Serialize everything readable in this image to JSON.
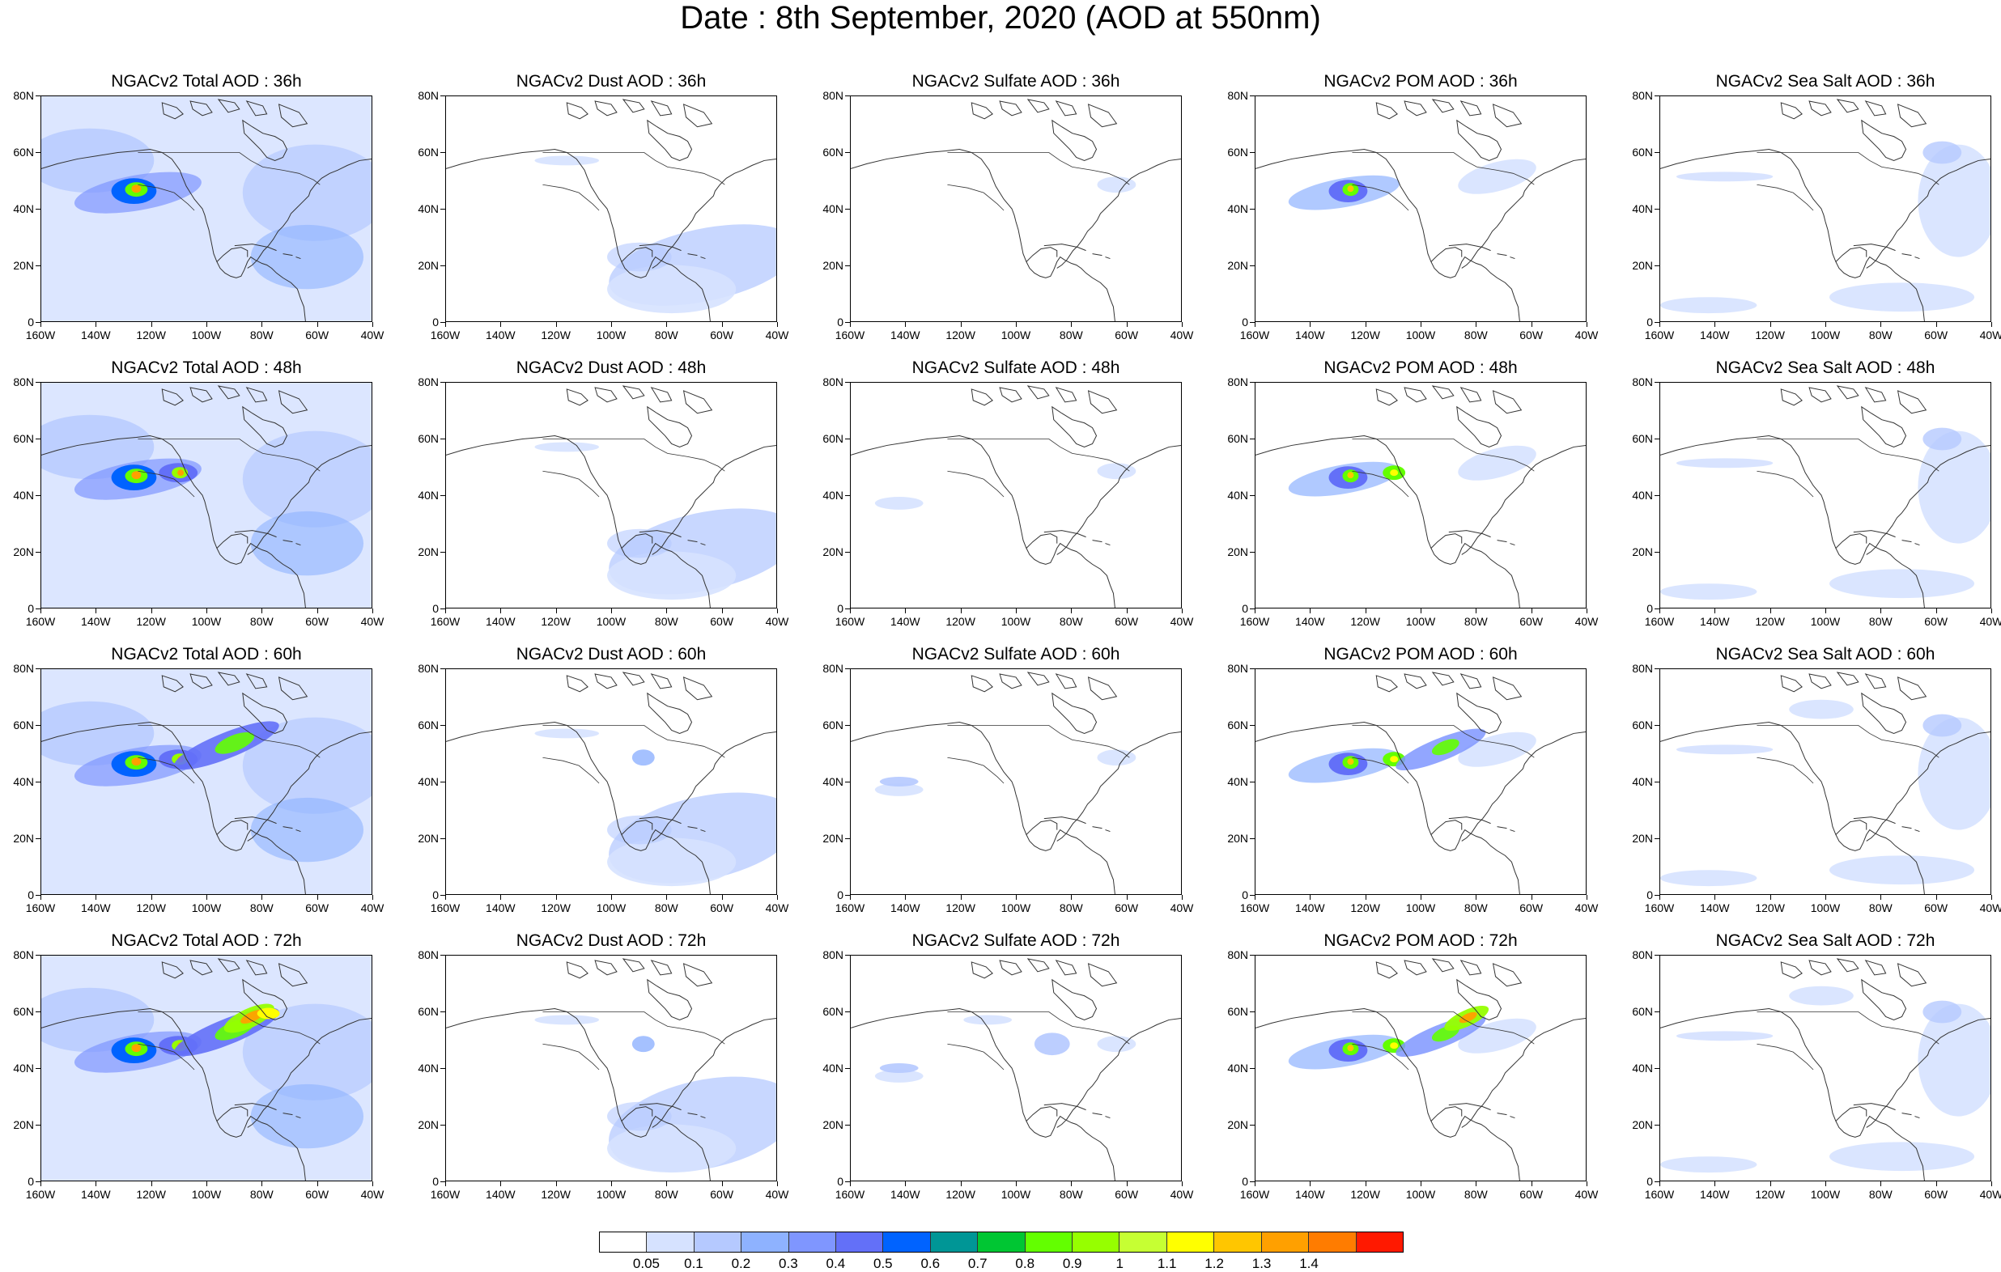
{
  "title": "Date : 8th September, 2020 (AOD at 550nm)",
  "xticks": [
    "160W",
    "140W",
    "120W",
    "100W",
    "80W",
    "60W",
    "40W"
  ],
  "yticks": [
    "80N",
    "60N",
    "40N",
    "20N",
    "0"
  ],
  "panels": [
    [
      {
        "title": "NGACv2 Total AOD : 36h",
        "species": "total",
        "hour": 36
      },
      {
        "title": "NGACv2 Dust AOD : 36h",
        "species": "dust",
        "hour": 36
      },
      {
        "title": "NGACv2 Sulfate AOD : 36h",
        "species": "sulfate",
        "hour": 36
      },
      {
        "title": "NGACv2 POM AOD : 36h",
        "species": "pom",
        "hour": 36
      },
      {
        "title": "NGACv2 Sea Salt AOD : 36h",
        "species": "seasalt",
        "hour": 36
      }
    ],
    [
      {
        "title": "NGACv2 Total AOD : 48h",
        "species": "total",
        "hour": 48
      },
      {
        "title": "NGACv2 Dust AOD : 48h",
        "species": "dust",
        "hour": 48
      },
      {
        "title": "NGACv2 Sulfate AOD : 48h",
        "species": "sulfate",
        "hour": 48
      },
      {
        "title": "NGACv2 POM AOD : 48h",
        "species": "pom",
        "hour": 48
      },
      {
        "title": "NGACv2 Sea Salt AOD : 48h",
        "species": "seasalt",
        "hour": 48
      }
    ],
    [
      {
        "title": "NGACv2 Total AOD : 60h",
        "species": "total",
        "hour": 60
      },
      {
        "title": "NGACv2 Dust AOD : 60h",
        "species": "dust",
        "hour": 60
      },
      {
        "title": "NGACv2 Sulfate AOD : 60h",
        "species": "sulfate",
        "hour": 60
      },
      {
        "title": "NGACv2 POM AOD : 60h",
        "species": "pom",
        "hour": 60
      },
      {
        "title": "NGACv2 Sea Salt AOD : 60h",
        "species": "seasalt",
        "hour": 60
      }
    ],
    [
      {
        "title": "NGACv2 Total AOD : 72h",
        "species": "total",
        "hour": 72
      },
      {
        "title": "NGACv2 Dust AOD : 72h",
        "species": "dust",
        "hour": 72
      },
      {
        "title": "NGACv2 Sulfate AOD : 72h",
        "species": "sulfate",
        "hour": 72
      },
      {
        "title": "NGACv2 POM AOD : 72h",
        "species": "pom",
        "hour": 72
      },
      {
        "title": "NGACv2 Sea Salt  AOD : 72h",
        "species": "seasalt",
        "hour": 72
      }
    ]
  ],
  "colorbar": {
    "colors": [
      "#ffffff",
      "#d6e2ff",
      "#b5c9ff",
      "#8eb2ff",
      "#7f96ff",
      "#6370f8",
      "#0063ff",
      "#009696",
      "#00c633",
      "#63ff00",
      "#96ff00",
      "#c6ff33",
      "#ffff00",
      "#ffc600",
      "#ffa000",
      "#ff7c00",
      "#ff1900"
    ],
    "labels": [
      "0.05",
      "0.1",
      "0.2",
      "0.3",
      "0.4",
      "0.5",
      "0.6",
      "0.7",
      "0.8",
      "0.9",
      "1",
      "1.1",
      "1.2",
      "1.3",
      "1.4"
    ]
  }
}
